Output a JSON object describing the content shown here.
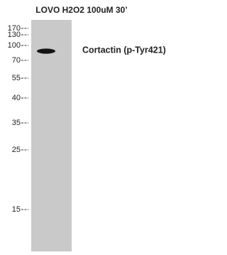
{
  "header": {
    "lane_label": "LOVO H2O2 100uM 30’"
  },
  "markers": [
    "170",
    "130",
    "100",
    "70",
    "55",
    "40",
    "35",
    "25",
    "15"
  ],
  "band": {
    "label": "Cortactin (p-Tyr421)"
  }
}
